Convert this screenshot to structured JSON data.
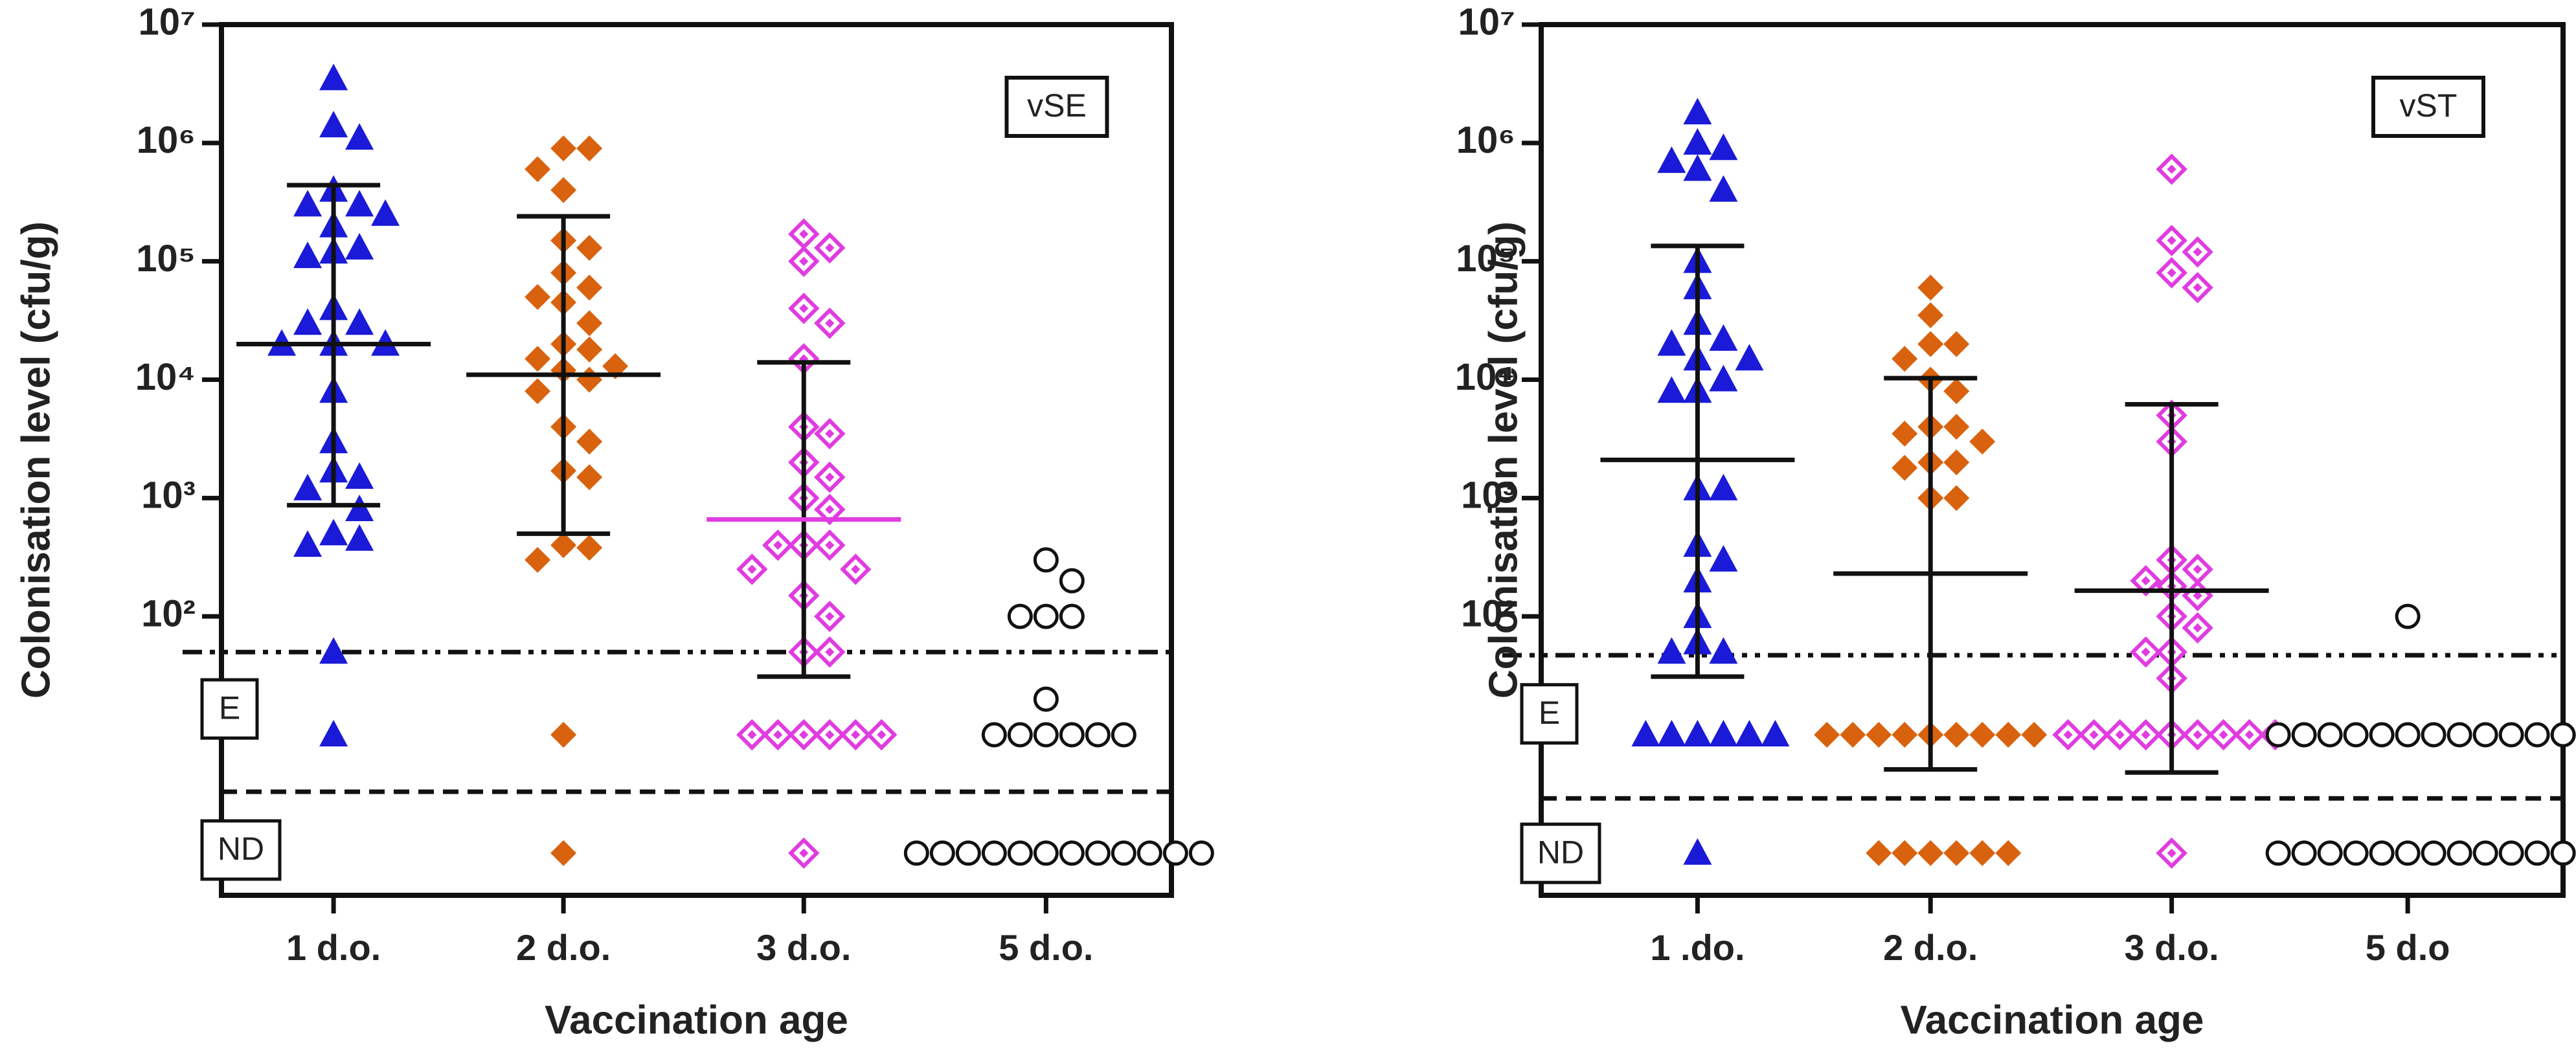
{
  "chart_data": [
    {
      "type": "scatter",
      "ylabel": "Colonisation level (cfu/g)",
      "xlabel": "Vaccination age",
      "annotation": "vSE",
      "threshold_labels": [
        "E",
        "ND"
      ],
      "log_y": true,
      "ylim": [
        0.44,
        10000000
      ],
      "yticks": [
        {
          "value": 100,
          "label": "10²"
        },
        {
          "value": 1000,
          "label": "10³"
        },
        {
          "value": 10000,
          "label": "10⁴"
        },
        {
          "value": 100000,
          "label": "10⁵"
        },
        {
          "value": 1000000,
          "label": "10⁶"
        },
        {
          "value": 10000000,
          "label": "10⁷"
        }
      ],
      "hlines": [
        {
          "value": 50,
          "style": "dashdot"
        },
        {
          "value": 3.3,
          "style": "dashed"
        }
      ],
      "categories": [
        "1 d.o.",
        "2 d.o.",
        "3 d.o.",
        "5 d.o."
      ],
      "series": [
        {
          "color": "#1a1ad8",
          "marker": "triangle",
          "values": [
            3500000,
            1400000,
            1100000,
            400000,
            300000,
            300000,
            200000,
            250000,
            130000,
            120000,
            110000,
            40000,
            30000,
            30000,
            20000,
            20000,
            20000,
            8000,
            3000,
            1700,
            1500,
            1200,
            500,
            450,
            400,
            800,
            50,
            10
          ]
        },
        {
          "color": "#d9620e",
          "marker": "diamond",
          "values": [
            900000,
            900000,
            600000,
            400000,
            150000,
            130000,
            80000,
            60000,
            50000,
            45000,
            30000,
            20000,
            18000,
            15000,
            13000,
            12000,
            10000,
            8000,
            4000,
            3000,
            1700,
            1500,
            400,
            380,
            300,
            10,
            1
          ]
        },
        {
          "color": "#e03ce0",
          "marker": "open-diamond",
          "values": [
            170000,
            130000,
            100000,
            40000,
            30000,
            15000,
            4000,
            3500,
            2000,
            1500,
            1000,
            800,
            400,
            400,
            400,
            250,
            250,
            150,
            100,
            50,
            50,
            10,
            10,
            10,
            10,
            10,
            10,
            1
          ]
        },
        {
          "color": "#111111",
          "marker": "open-circle",
          "values": [
            300,
            200,
            100,
            100,
            100,
            20,
            10,
            10,
            10,
            10,
            10,
            10,
            1,
            1,
            1,
            1,
            1,
            1,
            1,
            1,
            1,
            1,
            1,
            1
          ]
        }
      ],
      "summary": [
        {
          "center": 20000,
          "low": 870,
          "high": 440000,
          "color": "#111111"
        },
        {
          "center": 11000,
          "low": 500,
          "high": 240000,
          "color": "#111111"
        },
        {
          "center": 660,
          "low": 31,
          "high": 14000,
          "color": "#e03ce0"
        },
        null
      ]
    },
    {
      "type": "scatter",
      "ylabel": "Colonisation level (cfu/g)",
      "xlabel": "Vaccination age",
      "annotation": "vST",
      "threshold_labels": [
        "E",
        "ND"
      ],
      "log_y": true,
      "ylim": [
        0.44,
        10000000
      ],
      "yticks": [
        {
          "value": 100,
          "label": "10²"
        },
        {
          "value": 1000,
          "label": "10³"
        },
        {
          "value": 10000,
          "label": "10⁴"
        },
        {
          "value": 100000,
          "label": "10⁵"
        },
        {
          "value": 1000000,
          "label": "10⁶"
        },
        {
          "value": 10000000,
          "label": "10⁷"
        }
      ],
      "hlines": [
        {
          "value": 47,
          "style": "dashdot"
        },
        {
          "value": 2.9,
          "style": "dashed"
        }
      ],
      "categories": [
        "1 .do.",
        "2 d.o.",
        "3 d.o.",
        "5 d.o"
      ],
      "series": [
        {
          "color": "#1a1ad8",
          "marker": "triangle",
          "values": [
            1800000,
            1000000,
            900000,
            700000,
            600000,
            400000,
            100000,
            60000,
            30000,
            22000,
            20000,
            15000,
            15000,
            10000,
            8000,
            8000,
            1200,
            1200,
            400,
            300,
            200,
            100,
            60,
            50,
            50,
            10,
            10,
            10,
            10,
            10,
            10,
            1
          ]
        },
        {
          "color": "#d9620e",
          "marker": "diamond",
          "values": [
            60000,
            35000,
            20000,
            20000,
            15000,
            10000,
            8000,
            4000,
            4000,
            3500,
            3000,
            2000,
            2000,
            1800,
            1000,
            1000,
            10,
            10,
            10,
            10,
            10,
            10,
            10,
            10,
            10,
            1,
            1,
            1,
            1,
            1,
            1
          ]
        },
        {
          "color": "#e03ce0",
          "marker": "open-diamond",
          "values": [
            600000,
            150000,
            120000,
            80000,
            60000,
            5000,
            3000,
            300,
            250,
            200,
            180,
            150,
            100,
            80,
            50,
            50,
            30,
            10,
            10,
            10,
            10,
            10,
            10,
            10,
            10,
            10,
            1
          ]
        },
        {
          "color": "#111111",
          "marker": "open-circle",
          "values": [
            100,
            10,
            10,
            10,
            10,
            10,
            10,
            10,
            10,
            10,
            10,
            10,
            10,
            1,
            1,
            1,
            1,
            1,
            1,
            1,
            1,
            1,
            1,
            1,
            1
          ]
        }
      ],
      "summary": [
        {
          "center": 2100,
          "low": 31,
          "high": 135000,
          "color": "#111111"
        },
        {
          "center": 230,
          "low": 5.1,
          "high": 10300,
          "color": "#111111"
        },
        {
          "center": 165,
          "low": 4.8,
          "high": 6200,
          "color": "#111111"
        },
        null
      ]
    }
  ]
}
